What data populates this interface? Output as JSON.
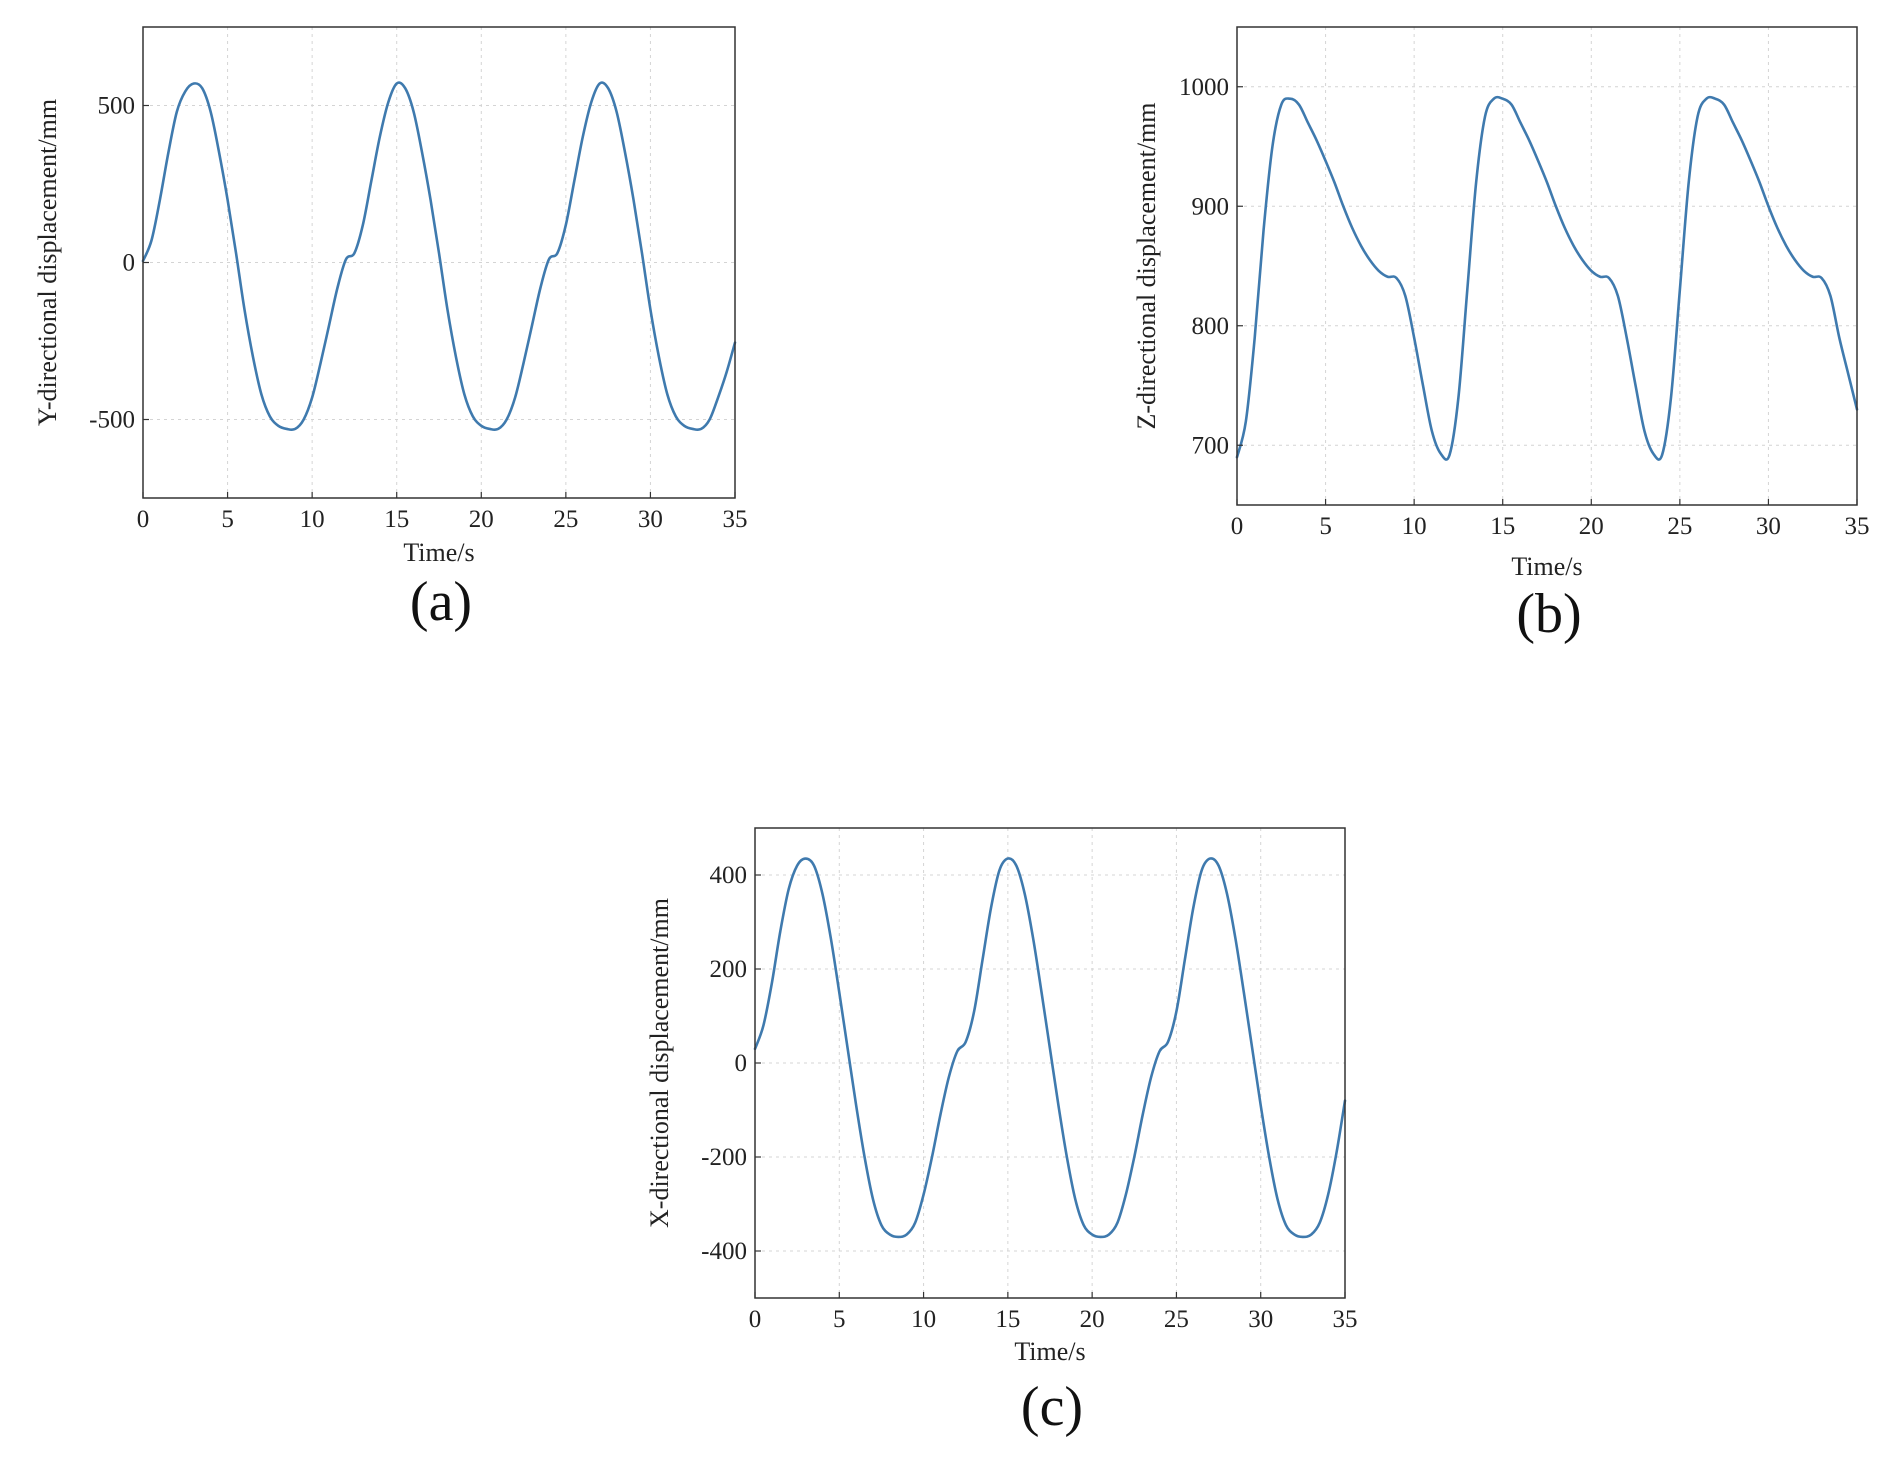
{
  "line_color": "#3f7aae",
  "chart_data": [
    {
      "type": "line",
      "panel_label": "(a)",
      "xlabel": "Time/s",
      "ylabel": "Y-directional displacement/mm",
      "xlim": [
        0,
        35
      ],
      "ylim": [
        -750,
        750
      ],
      "xticks": [
        0,
        5,
        10,
        15,
        20,
        25,
        30,
        35
      ],
      "yticks": [
        -500,
        0,
        500
      ],
      "grid": true,
      "x": [
        0,
        0.5,
        1,
        1.5,
        2,
        2.5,
        3,
        3.5,
        4,
        4.5,
        5,
        5.5,
        6,
        6.5,
        7,
        7.5,
        8,
        8.5,
        9,
        9.5,
        10,
        10.5,
        11,
        11.5,
        12,
        12.5,
        13,
        13.5,
        14,
        14.5,
        15,
        15.5,
        16,
        16.5,
        17,
        17.5,
        18,
        18.5,
        19,
        19.5,
        20,
        20.5,
        21,
        21.5,
        22,
        22.5,
        23,
        23.5,
        24,
        24.5,
        25,
        25.5,
        26,
        26.5,
        27,
        27.5,
        28,
        28.5,
        29,
        29.5,
        30,
        30.5,
        31,
        31.5,
        32,
        32.5,
        33,
        33.5,
        34,
        34.5,
        35
      ],
      "y": [
        5,
        70,
        200,
        350,
        480,
        545,
        570,
        555,
        480,
        350,
        200,
        30,
        -150,
        -300,
        -420,
        -490,
        -520,
        -530,
        -530,
        -500,
        -430,
        -320,
        -200,
        -80,
        10,
        30,
        120,
        260,
        400,
        510,
        570,
        555,
        480,
        350,
        200,
        30,
        -150,
        -300,
        -420,
        -490,
        -520,
        -530,
        -530,
        -500,
        -430,
        -320,
        -200,
        -80,
        10,
        30,
        120,
        260,
        400,
        510,
        570,
        555,
        480,
        350,
        200,
        30,
        -150,
        -300,
        -420,
        -490,
        -520,
        -530,
        -530,
        -500,
        -430,
        -350,
        -255
      ]
    },
    {
      "type": "line",
      "panel_label": "(b)",
      "xlabel": "Time/s",
      "ylabel": "Z-directional displacement/mm",
      "xlim": [
        0,
        35
      ],
      "ylim": [
        650,
        1050
      ],
      "xticks": [
        0,
        5,
        10,
        15,
        20,
        25,
        30,
        35
      ],
      "yticks": [
        700,
        800,
        900,
        1000
      ],
      "grid": true,
      "x": [
        0,
        0.5,
        1,
        1.5,
        2,
        2.5,
        3,
        3.5,
        4,
        4.5,
        5,
        5.5,
        6,
        6.5,
        7,
        7.5,
        8,
        8.5,
        9,
        9.5,
        10,
        10.5,
        11,
        11.5,
        12,
        12.5,
        13,
        13.5,
        14,
        14.5,
        15,
        15.5,
        16,
        16.5,
        17,
        17.5,
        18,
        18.5,
        19,
        19.5,
        20,
        20.5,
        21,
        21.5,
        22,
        22.5,
        23,
        23.5,
        24,
        24.5,
        25,
        25.5,
        26,
        26.5,
        27,
        27.5,
        28,
        28.5,
        29,
        29.5,
        30,
        30.5,
        31,
        31.5,
        32,
        32.5,
        33,
        33.5,
        34,
        34.5,
        35
      ],
      "y": [
        690,
        720,
        790,
        880,
        950,
        985,
        990,
        985,
        970,
        955,
        938,
        920,
        900,
        882,
        867,
        855,
        846,
        841,
        840,
        825,
        790,
        750,
        712,
        693,
        692,
        740,
        830,
        920,
        975,
        990,
        990,
        985,
        970,
        955,
        938,
        920,
        900,
        882,
        867,
        855,
        846,
        841,
        840,
        825,
        790,
        750,
        712,
        693,
        692,
        740,
        830,
        920,
        975,
        990,
        990,
        985,
        970,
        955,
        938,
        920,
        900,
        882,
        867,
        855,
        846,
        841,
        840,
        825,
        790,
        760,
        730
      ]
    },
    {
      "type": "line",
      "panel_label": "(c)",
      "xlabel": "Time/s",
      "ylabel": "X-directional displacement/mm",
      "xlim": [
        0,
        35
      ],
      "ylim": [
        -500,
        500
      ],
      "xticks": [
        0,
        5,
        10,
        15,
        20,
        25,
        30,
        35
      ],
      "yticks": [
        -400,
        -200,
        0,
        200,
        400
      ],
      "grid": true,
      "x": [
        0,
        0.5,
        1,
        1.5,
        2,
        2.5,
        3,
        3.5,
        4,
        4.5,
        5,
        5.5,
        6,
        6.5,
        7,
        7.5,
        8,
        8.5,
        9,
        9.5,
        10,
        10.5,
        11,
        11.5,
        12,
        12.5,
        13,
        13.5,
        14,
        14.5,
        15,
        15.5,
        16,
        16.5,
        17,
        17.5,
        18,
        18.5,
        19,
        19.5,
        20,
        20.5,
        21,
        21.5,
        22,
        22.5,
        23,
        23.5,
        24,
        24.5,
        25,
        25.5,
        26,
        26.5,
        27,
        27.5,
        28,
        28.5,
        29,
        29.5,
        30,
        30.5,
        31,
        31.5,
        32,
        32.5,
        33,
        33.5,
        34,
        34.5,
        35
      ],
      "y": [
        30,
        80,
        170,
        280,
        370,
        420,
        435,
        420,
        360,
        265,
        150,
        30,
        -90,
        -200,
        -290,
        -345,
        -365,
        -370,
        -365,
        -340,
        -280,
        -200,
        -110,
        -30,
        25,
        45,
        110,
        220,
        330,
        410,
        435,
        420,
        360,
        265,
        150,
        30,
        -90,
        -200,
        -290,
        -345,
        -365,
        -370,
        -365,
        -340,
        -280,
        -200,
        -110,
        -30,
        25,
        45,
        110,
        220,
        330,
        410,
        435,
        420,
        360,
        265,
        150,
        30,
        -90,
        -200,
        -290,
        -345,
        -365,
        -370,
        -365,
        -340,
        -280,
        -190,
        -80
      ]
    }
  ]
}
